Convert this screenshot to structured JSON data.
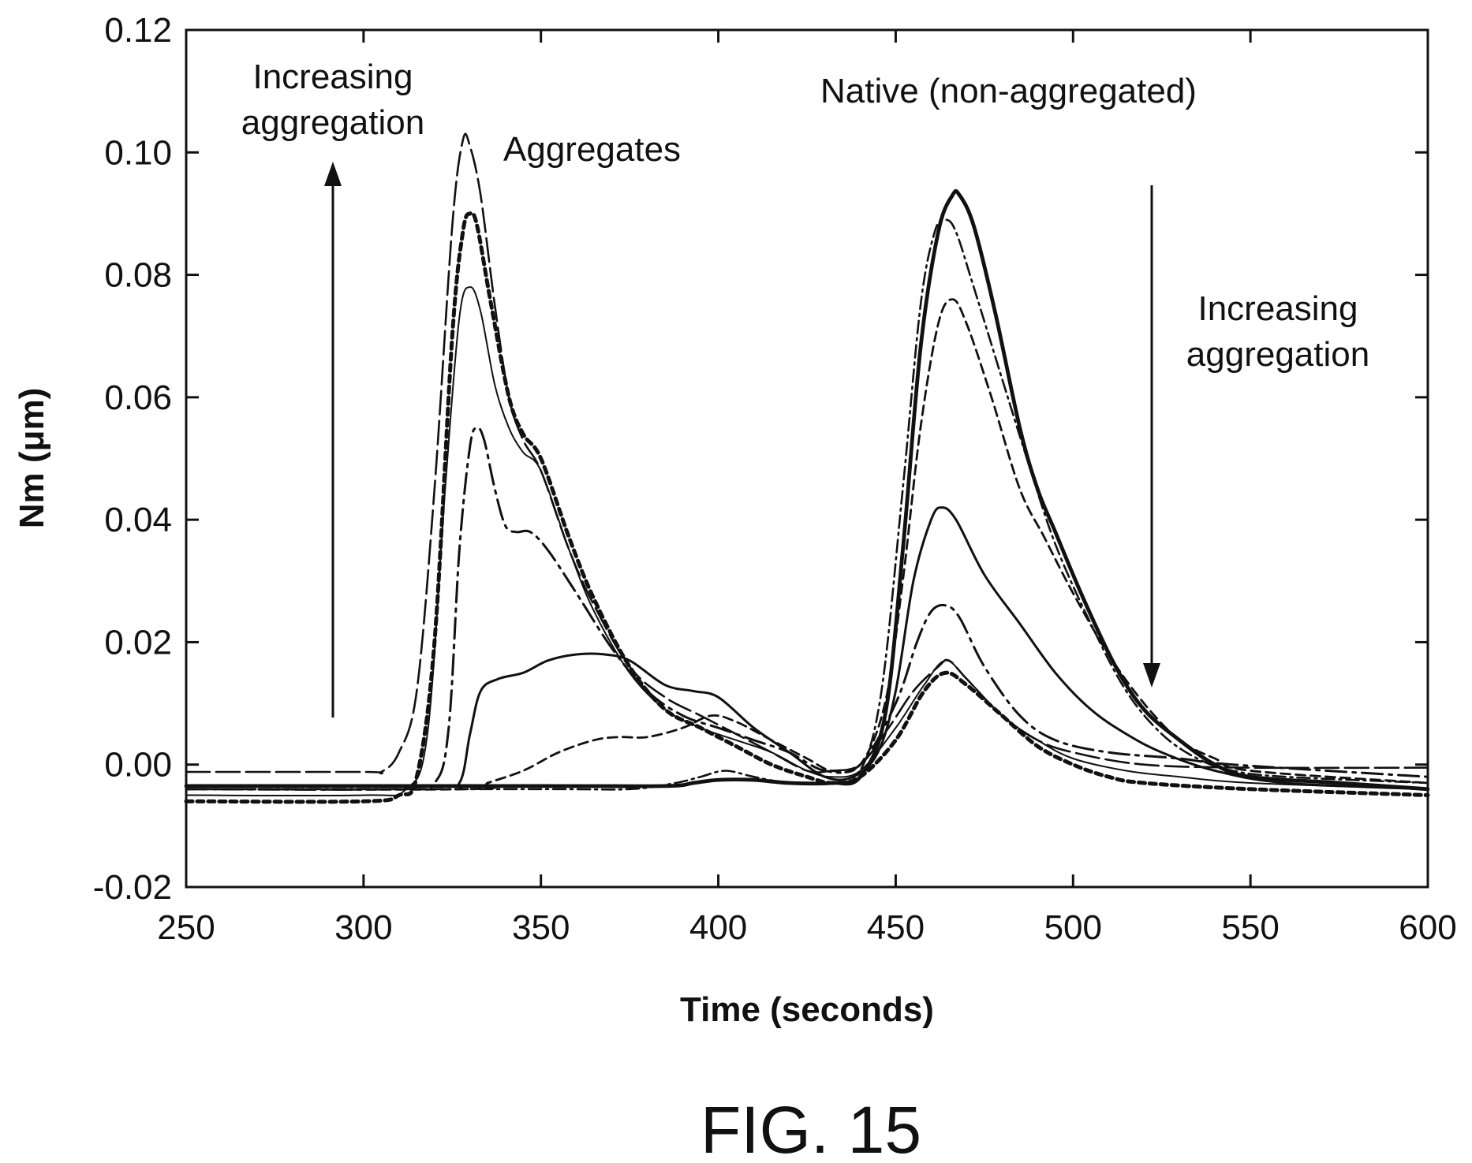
{
  "figure_label": "FIG. 15",
  "chart_data": {
    "type": "line",
    "title": "",
    "xlabel": "Time (seconds)",
    "ylabel": "Nm (μm)",
    "xlim": [
      250,
      600
    ],
    "ylim": [
      -0.02,
      0.12
    ],
    "xticks": [
      "250",
      "300",
      "350",
      "400",
      "450",
      "500",
      "550",
      "600"
    ],
    "yticks": [
      "-0.02",
      "0.00",
      "0.02",
      "0.04",
      "0.06",
      "0.08",
      "0.10",
      "0.12"
    ],
    "grid": false,
    "legend": "none",
    "annotations": {
      "aggregates": "Aggregates",
      "native": "Native (non-aggregated)",
      "increasing_left_line1": "Increasing",
      "increasing_left_line2": "aggregation",
      "increasing_right_line1": "Increasing",
      "increasing_right_line2": "aggregation"
    },
    "series": [
      {
        "style": "long-dash",
        "points": [
          [
            250,
            -0.0012
          ],
          [
            300,
            -0.0012
          ],
          [
            305,
            -0.0012
          ],
          [
            310,
            0.002
          ],
          [
            315,
            0.012
          ],
          [
            320,
            0.045
          ],
          [
            325,
            0.088
          ],
          [
            328,
            0.102
          ],
          [
            330,
            0.101
          ],
          [
            333,
            0.093
          ],
          [
            337,
            0.075
          ],
          [
            341,
            0.06
          ],
          [
            345,
            0.053
          ],
          [
            350,
            0.048
          ],
          [
            358,
            0.035
          ],
          [
            365,
            0.026
          ],
          [
            375,
            0.016
          ],
          [
            385,
            0.011
          ],
          [
            395,
            0.008
          ],
          [
            405,
            0.005
          ],
          [
            415,
            0.002
          ],
          [
            425,
            -0.001
          ],
          [
            432,
            -0.001
          ],
          [
            440,
            0.0
          ],
          [
            448,
            0.006
          ],
          [
            455,
            0.012
          ],
          [
            462,
            0.016
          ],
          [
            465,
            0.017
          ],
          [
            470,
            0.014
          ],
          [
            480,
            0.008
          ],
          [
            490,
            0.004
          ],
          [
            500,
            0.002
          ],
          [
            520,
            0.0
          ],
          [
            550,
            -0.0005
          ],
          [
            600,
            -0.0005
          ]
        ]
      },
      {
        "style": "heavy-dotted",
        "points": [
          [
            250,
            -0.006
          ],
          [
            300,
            -0.006
          ],
          [
            310,
            -0.005
          ],
          [
            315,
            -0.002
          ],
          [
            320,
            0.02
          ],
          [
            325,
            0.07
          ],
          [
            328,
            0.087
          ],
          [
            330,
            0.09
          ],
          [
            332,
            0.088
          ],
          [
            336,
            0.075
          ],
          [
            341,
            0.06
          ],
          [
            345,
            0.054
          ],
          [
            350,
            0.05
          ],
          [
            358,
            0.037
          ],
          [
            365,
            0.027
          ],
          [
            375,
            0.016
          ],
          [
            385,
            0.009
          ],
          [
            395,
            0.006
          ],
          [
            405,
            0.003
          ],
          [
            415,
            0.0
          ],
          [
            425,
            -0.002
          ],
          [
            432,
            -0.003
          ],
          [
            440,
            -0.002
          ],
          [
            450,
            0.004
          ],
          [
            458,
            0.012
          ],
          [
            464,
            0.015
          ],
          [
            470,
            0.013
          ],
          [
            480,
            0.008
          ],
          [
            490,
            0.003
          ],
          [
            500,
            0.0
          ],
          [
            510,
            -0.002
          ],
          [
            520,
            -0.003
          ],
          [
            550,
            -0.004
          ],
          [
            600,
            -0.005
          ]
        ]
      },
      {
        "style": "thin-solid",
        "points": [
          [
            250,
            -0.005
          ],
          [
            300,
            -0.005
          ],
          [
            312,
            -0.004
          ],
          [
            318,
            0.005
          ],
          [
            323,
            0.045
          ],
          [
            327,
            0.073
          ],
          [
            330,
            0.078
          ],
          [
            333,
            0.074
          ],
          [
            337,
            0.062
          ],
          [
            341,
            0.055
          ],
          [
            345,
            0.051
          ],
          [
            350,
            0.048
          ],
          [
            358,
            0.035
          ],
          [
            365,
            0.025
          ],
          [
            375,
            0.015
          ],
          [
            385,
            0.009
          ],
          [
            395,
            0.006
          ],
          [
            405,
            0.004
          ],
          [
            415,
            0.002
          ],
          [
            425,
            -0.001
          ],
          [
            432,
            -0.002
          ],
          [
            440,
            -0.001
          ],
          [
            450,
            0.006
          ],
          [
            458,
            0.013
          ],
          [
            464,
            0.017
          ],
          [
            470,
            0.014
          ],
          [
            480,
            0.008
          ],
          [
            490,
            0.004
          ],
          [
            500,
            0.001
          ],
          [
            515,
            -0.001
          ],
          [
            530,
            -0.002
          ],
          [
            550,
            -0.003
          ],
          [
            600,
            -0.004
          ]
        ]
      },
      {
        "style": "dash-dot",
        "points": [
          [
            250,
            -0.004
          ],
          [
            310,
            -0.004
          ],
          [
            320,
            -0.003
          ],
          [
            324,
            0.006
          ],
          [
            327,
            0.035
          ],
          [
            330,
            0.052
          ],
          [
            332,
            0.055
          ],
          [
            334,
            0.053
          ],
          [
            337,
            0.045
          ],
          [
            340,
            0.039
          ],
          [
            343,
            0.038
          ],
          [
            347,
            0.038
          ],
          [
            352,
            0.035
          ],
          [
            360,
            0.028
          ],
          [
            370,
            0.019
          ],
          [
            380,
            0.012
          ],
          [
            390,
            0.008
          ],
          [
            400,
            0.006
          ],
          [
            410,
            0.004
          ],
          [
            420,
            0.002
          ],
          [
            430,
            -0.001
          ],
          [
            440,
            0.0
          ],
          [
            450,
            0.01
          ],
          [
            456,
            0.02
          ],
          [
            460,
            0.025
          ],
          [
            464,
            0.026
          ],
          [
            468,
            0.024
          ],
          [
            475,
            0.016
          ],
          [
            485,
            0.008
          ],
          [
            495,
            0.004
          ],
          [
            510,
            0.002
          ],
          [
            530,
            0.001
          ],
          [
            545,
            0.0
          ],
          [
            600,
            -0.002
          ]
        ]
      },
      {
        "style": "medium-solid",
        "points": [
          [
            250,
            -0.0035
          ],
          [
            320,
            -0.0035
          ],
          [
            327,
            -0.003
          ],
          [
            330,
            0.005
          ],
          [
            333,
            0.012
          ],
          [
            338,
            0.014
          ],
          [
            345,
            0.015
          ],
          [
            352,
            0.017
          ],
          [
            360,
            0.018
          ],
          [
            368,
            0.018
          ],
          [
            375,
            0.017
          ],
          [
            385,
            0.013
          ],
          [
            393,
            0.012
          ],
          [
            400,
            0.011
          ],
          [
            410,
            0.006
          ],
          [
            420,
            0.002
          ],
          [
            430,
            -0.002
          ],
          [
            438,
            -0.002
          ],
          [
            445,
            0.002
          ],
          [
            450,
            0.012
          ],
          [
            455,
            0.03
          ],
          [
            460,
            0.04
          ],
          [
            463,
            0.042
          ],
          [
            467,
            0.04
          ],
          [
            475,
            0.031
          ],
          [
            485,
            0.023
          ],
          [
            495,
            0.015
          ],
          [
            505,
            0.009
          ],
          [
            515,
            0.005
          ],
          [
            525,
            0.002
          ],
          [
            540,
            -0.001
          ],
          [
            560,
            -0.003
          ],
          [
            600,
            -0.004
          ]
        ]
      },
      {
        "style": "short-dash",
        "points": [
          [
            250,
            -0.004
          ],
          [
            330,
            -0.004
          ],
          [
            335,
            -0.003
          ],
          [
            345,
            -0.001
          ],
          [
            355,
            0.002
          ],
          [
            365,
            0.004
          ],
          [
            372,
            0.0045
          ],
          [
            380,
            0.0045
          ],
          [
            390,
            0.006
          ],
          [
            398,
            0.008
          ],
          [
            405,
            0.007
          ],
          [
            415,
            0.004
          ],
          [
            425,
            0.001
          ],
          [
            432,
            -0.001
          ],
          [
            440,
            0.0
          ],
          [
            447,
            0.01
          ],
          [
            452,
            0.03
          ],
          [
            457,
            0.055
          ],
          [
            462,
            0.072
          ],
          [
            466,
            0.076
          ],
          [
            470,
            0.072
          ],
          [
            477,
            0.06
          ],
          [
            485,
            0.045
          ],
          [
            492,
            0.037
          ],
          [
            500,
            0.028
          ],
          [
            510,
            0.018
          ],
          [
            520,
            0.01
          ],
          [
            530,
            0.004
          ],
          [
            540,
            0.001
          ],
          [
            550,
            -0.001
          ],
          [
            600,
            -0.003
          ]
        ]
      },
      {
        "style": "dash-dot-fine",
        "points": [
          [
            250,
            -0.004
          ],
          [
            350,
            -0.004
          ],
          [
            375,
            -0.004
          ],
          [
            388,
            -0.003
          ],
          [
            395,
            -0.002
          ],
          [
            402,
            -0.001
          ],
          [
            410,
            -0.002
          ],
          [
            420,
            -0.003
          ],
          [
            432,
            -0.003
          ],
          [
            440,
            -0.001
          ],
          [
            446,
            0.012
          ],
          [
            452,
            0.045
          ],
          [
            457,
            0.075
          ],
          [
            461,
            0.087
          ],
          [
            464,
            0.089
          ],
          [
            467,
            0.087
          ],
          [
            472,
            0.078
          ],
          [
            480,
            0.063
          ],
          [
            487,
            0.05
          ],
          [
            495,
            0.036
          ],
          [
            505,
            0.023
          ],
          [
            515,
            0.012
          ],
          [
            525,
            0.005
          ],
          [
            535,
            0.001
          ],
          [
            545,
            -0.001
          ],
          [
            560,
            -0.002
          ],
          [
            600,
            -0.003
          ]
        ]
      },
      {
        "style": "heavy-solid",
        "points": [
          [
            250,
            -0.0035
          ],
          [
            350,
            -0.0035
          ],
          [
            385,
            -0.0035
          ],
          [
            393,
            -0.003
          ],
          [
            400,
            -0.0025
          ],
          [
            410,
            -0.0025
          ],
          [
            420,
            -0.003
          ],
          [
            432,
            -0.003
          ],
          [
            440,
            -0.002
          ],
          [
            447,
            0.008
          ],
          [
            452,
            0.035
          ],
          [
            457,
            0.068
          ],
          [
            462,
            0.087
          ],
          [
            466,
            0.093
          ],
          [
            468,
            0.093
          ],
          [
            472,
            0.088
          ],
          [
            478,
            0.074
          ],
          [
            485,
            0.055
          ],
          [
            490,
            0.045
          ],
          [
            495,
            0.038
          ],
          [
            503,
            0.027
          ],
          [
            512,
            0.016
          ],
          [
            520,
            0.009
          ],
          [
            530,
            0.004
          ],
          [
            540,
            0.0
          ],
          [
            550,
            -0.002
          ],
          [
            575,
            -0.003
          ],
          [
            600,
            -0.004
          ]
        ]
      }
    ]
  }
}
